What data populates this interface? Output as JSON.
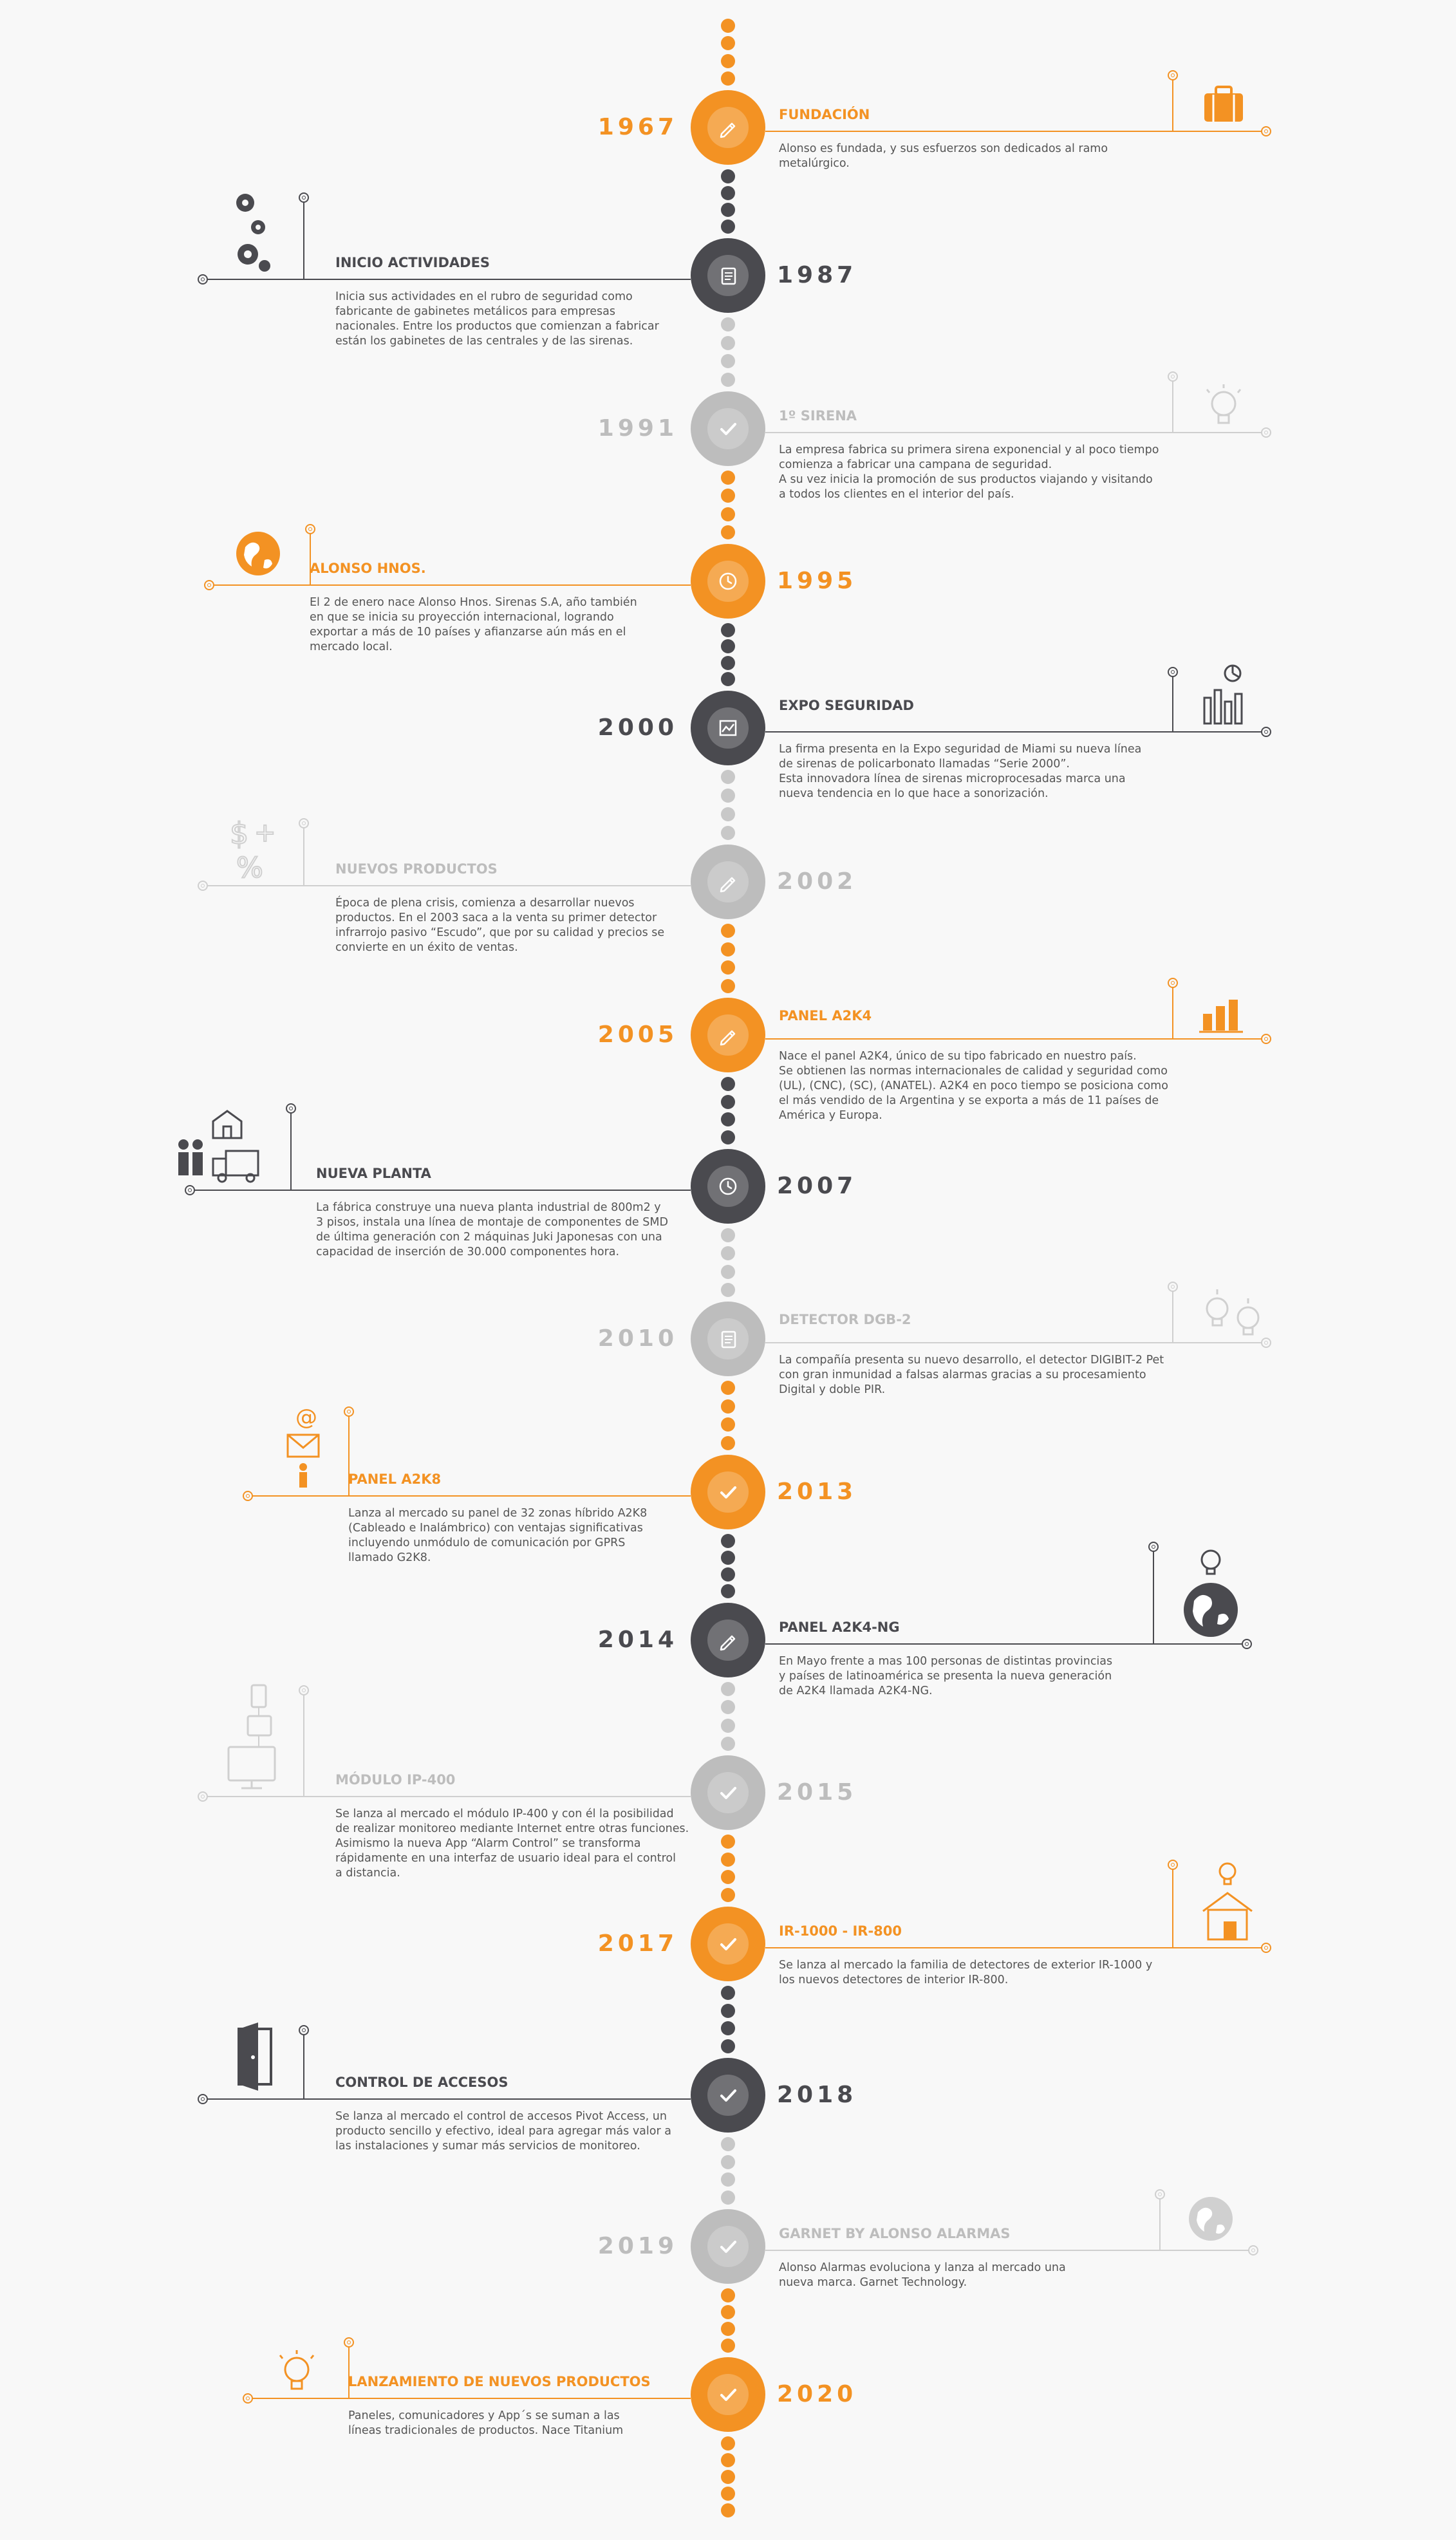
{
  "colors": {
    "orange": "#F39223",
    "dark": "#4A4A4F",
    "light": "#BDBDBD",
    "background": "#F8F8F8",
    "text": "#555555"
  },
  "events": [
    {
      "year": "1967",
      "title": "FUNDACIÓN",
      "color": "orange",
      "icon": "pencil-icon",
      "picture": "briefcase-icon",
      "description": "Alonso es fundada, y sus esfuerzos son dedicados al ramo\nmetalúrgico."
    },
    {
      "year": "1987",
      "title": "INICIO ACTIVIDADES",
      "color": "dark",
      "icon": "document-icon",
      "picture": "gears-icon",
      "description": "Inicia sus actividades en el rubro de seguridad como\nfabricante de gabinetes metálicos para empresas\nnacionales. Entre los productos que comienzan a fabricar\nestán los gabinetes de las centrales y de las sirenas."
    },
    {
      "year": "1991",
      "title": "1º SIRENA",
      "color": "light",
      "icon": "check-icon",
      "picture": "lightbulb-icon",
      "description": "La empresa fabrica su primera sirena exponencial y al poco tiempo\ncomienza a fabricar una campana de seguridad.\nA su vez inicia la promoción de sus productos viajando y visitando\na todos los clientes en el interior del país."
    },
    {
      "year": "1995",
      "title": "ALONSO HNOS.",
      "color": "orange",
      "icon": "clock-icon",
      "picture": "globe-icon",
      "description": "El 2 de enero nace Alonso Hnos. Sirenas S.A, año también\nen que se inicia su proyección internacional, logrando\nexportar a más de 10 países y afianzarse aún más en el\nmercado local."
    },
    {
      "year": "2000",
      "title": "EXPO SEGURIDAD",
      "color": "dark",
      "icon": "chart-icon",
      "picture": "bar-chart-pie-icon",
      "description": "La firma presenta en la Expo seguridad de Miami su nueva línea\nde sirenas de policarbonato llamadas “Serie 2000”.\nEsta innovadora línea de sirenas microprocesadas marca una\nnueva tendencia en lo que hace a sonorización."
    },
    {
      "year": "2002",
      "title": "NUEVOS PRODUCTOS",
      "color": "light",
      "icon": "pencil-icon",
      "picture": "dollar-percent-icon",
      "description": "Época de plena crisis, comienza a desarrollar nuevos\nproductos. En el 2003 saca a la venta su primer detector\ninfrarrojo pasivo “Escudo”, que por su calidad y precios se\nconvierte en un éxito de ventas."
    },
    {
      "year": "2005",
      "title": "PANEL A2K4",
      "color": "orange",
      "icon": "pencil-icon",
      "picture": "bar-chart-icon",
      "description": "Nace el panel A2K4, único de su tipo fabricado en nuestro país.\nSe obtienen las normas internacionales de calidad y seguridad como\n(UL), (CNC), (SC), (ANATEL). A2K4 en poco tiempo se posiciona como\nel más vendido de la Argentina y se exporta a más de 11 países de\nAmérica y Europa."
    },
    {
      "year": "2007",
      "title": "NUEVA PLANTA",
      "color": "dark",
      "icon": "clock-icon",
      "picture": "factory-truck-icon",
      "description": "La fábrica construye una nueva planta industrial de 800m2 y\n3 pisos, instala una línea de montaje de componentes de SMD\nde última generación con 2 máquinas Juki Japonesas con una\ncapacidad de inserción de 30.000 componentes hora."
    },
    {
      "year": "2010",
      "title": "DETECTOR DGB-2",
      "color": "light",
      "icon": "document-icon",
      "picture": "two-lightbulbs-icon",
      "description": "La compañía presenta su nuevo desarrollo, el detector DIGIBIT-2 Pet\ncon gran inmunidad a falsas alarmas gracias a su procesamiento\nDigital y doble PIR."
    },
    {
      "year": "2013",
      "title": "PANEL A2K8",
      "color": "orange",
      "icon": "check-icon",
      "picture": "email-person-icon",
      "description": "Lanza al mercado su panel de 32 zonas híbrido A2K8\n(Cableado e Inalámbrico) con ventajas significativas\nincluyendo unmódulo de comunicación por GPRS\nllamado G2K8."
    },
    {
      "year": "2014",
      "title": "PANEL A2K4-NG",
      "color": "dark",
      "icon": "pencil-icon",
      "picture": "globe-bulb-icon",
      "description": "En Mayo frente a mas 100 personas de distintas provincias\ny países de latinoamérica se presenta la nueva generación\nde A2K4 llamada A2K4-NG."
    },
    {
      "year": "2015",
      "title": "MÓDULO IP-400",
      "color": "light",
      "icon": "check-icon",
      "picture": "devices-icon",
      "description": "Se lanza al mercado el módulo IP-400 y con él la posibilidad\nde realizar monitoreo mediante Internet entre otras funciones.\nAsimismo la nueva App “Alarm Control” se transforma\nrápidamente en una interfaz de usuario ideal para el control\na distancia."
    },
    {
      "year": "2017",
      "title": "IR-1000 - IR-800",
      "color": "orange",
      "icon": "check-icon",
      "picture": "house-bulb-icon",
      "description": "Se lanza al mercado la familia de detectores de exterior IR-1000 y\nlos nuevos detectores de interior IR-800."
    },
    {
      "year": "2018",
      "title": "CONTROL DE ACCESOS",
      "color": "dark",
      "icon": "check-icon",
      "picture": "door-icon",
      "description": "Se lanza al mercado el control de accesos Pivot Access, un\nproducto sencillo y efectivo, ideal para agregar más valor a\nlas instalaciones y sumar más servicios de monitoreo."
    },
    {
      "year": "2019",
      "title": "GARNET BY ALONSO ALARMAS",
      "color": "light",
      "icon": "check-icon",
      "picture": "globe-icon",
      "description": "Alonso Alarmas evoluciona y lanza al mercado una\nnueva marca. Garnet Technology."
    },
    {
      "year": "2020",
      "title": "LANZAMIENTO DE NUEVOS PRODUCTOS",
      "color": "orange",
      "icon": "check-icon",
      "picture": "lightbulb-icon",
      "description": "Paneles, comunicadores y App´s se suman a las\nlíneas tradicionales de productos. Nace Titanium"
    }
  ]
}
